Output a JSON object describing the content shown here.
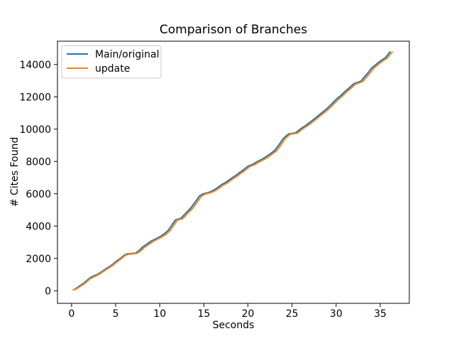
{
  "figure": {
    "background": "#ffffff",
    "spine_color": "#000000",
    "legend_border_color": "#cccccc"
  },
  "chart_data": {
    "type": "line",
    "title": "Comparison of Branches",
    "xlabel": "Seconds",
    "ylabel": "# Cites Found",
    "grid": false,
    "legend_position": "upper left",
    "xlim": [
      -1.6,
      38.3
    ],
    "ylim": [
      -780,
      15440
    ],
    "xticks": [
      0,
      5,
      10,
      15,
      20,
      25,
      30,
      35
    ],
    "yticks": [
      0,
      2000,
      4000,
      6000,
      8000,
      10000,
      12000,
      14000
    ],
    "series": [
      {
        "name": "Main/original",
        "color": "#1f77b4",
        "x": [
          0.2,
          0.5,
          1,
          1.5,
          2,
          2.3,
          3,
          3.5,
          4,
          4.5,
          5,
          5.5,
          6,
          6.3,
          7.3,
          7.8,
          8,
          8.5,
          9,
          9.5,
          10,
          10.5,
          11,
          11.5,
          11.8,
          12.4,
          13,
          13.5,
          14,
          14.5,
          14.9,
          15.6,
          16,
          16.5,
          17,
          17.5,
          18,
          18.5,
          19,
          19.5,
          20,
          20.6,
          21,
          21.5,
          22,
          22.5,
          23,
          23.5,
          24,
          24.6,
          25.4,
          26,
          26.5,
          27,
          27.5,
          28,
          28.5,
          29,
          29.5,
          30,
          30.5,
          31,
          31.5,
          32,
          32.8,
          33.2,
          33.6,
          34,
          34.5,
          35,
          35.6,
          36,
          36.1
        ],
        "y": [
          60,
          140,
          330,
          520,
          760,
          870,
          1030,
          1210,
          1400,
          1560,
          1790,
          1990,
          2210,
          2280,
          2330,
          2560,
          2680,
          2870,
          3060,
          3200,
          3340,
          3510,
          3760,
          4160,
          4390,
          4480,
          4830,
          5110,
          5470,
          5860,
          5990,
          6090,
          6190,
          6360,
          6560,
          6710,
          6910,
          7090,
          7290,
          7490,
          7700,
          7840,
          7970,
          8110,
          8270,
          8460,
          8660,
          9010,
          9420,
          9700,
          9770,
          10030,
          10210,
          10410,
          10620,
          10850,
          11060,
          11290,
          11560,
          11840,
          12060,
          12330,
          12560,
          12810,
          12960,
          13220,
          13470,
          13760,
          13990,
          14210,
          14420,
          14700,
          14780
        ]
      },
      {
        "name": "update",
        "color": "#ff7f0e",
        "x": [
          0.2,
          0.6,
          1.1,
          1.6,
          2.1,
          2.5,
          3.1,
          3.6,
          4.1,
          4.6,
          5.1,
          5.6,
          6.1,
          6.5,
          7.4,
          8,
          8.2,
          8.7,
          9.2,
          9.7,
          10.2,
          10.7,
          11.2,
          11.7,
          12,
          12.6,
          13.2,
          13.7,
          14.2,
          14.7,
          15.1,
          15.8,
          16.2,
          16.7,
          17.2,
          17.7,
          18.2,
          18.7,
          19.2,
          19.7,
          20.2,
          20.8,
          21.2,
          21.7,
          22.2,
          22.7,
          23.2,
          23.7,
          24.2,
          24.8,
          25.6,
          26.2,
          26.7,
          27.2,
          27.7,
          28.2,
          28.7,
          29.2,
          29.7,
          30.2,
          30.7,
          31.2,
          31.7,
          32.2,
          33,
          33.4,
          33.8,
          34.2,
          34.7,
          35.2,
          35.8,
          36.2,
          36.35
        ],
        "y": [
          55,
          130,
          310,
          500,
          740,
          850,
          1010,
          1190,
          1380,
          1540,
          1770,
          1970,
          2190,
          2260,
          2310,
          2540,
          2660,
          2850,
          3040,
          3180,
          3320,
          3490,
          3740,
          4140,
          4370,
          4460,
          4810,
          5090,
          5450,
          5840,
          5970,
          6070,
          6170,
          6340,
          6540,
          6690,
          6890,
          7070,
          7270,
          7470,
          7680,
          7820,
          7950,
          8090,
          8250,
          8440,
          8640,
          8990,
          9400,
          9680,
          9750,
          10010,
          10190,
          10390,
          10600,
          10830,
          11040,
          11270,
          11540,
          11820,
          12040,
          12310,
          12540,
          12790,
          12940,
          13200,
          13450,
          13740,
          13970,
          14190,
          14400,
          14680,
          14760
        ]
      }
    ]
  }
}
